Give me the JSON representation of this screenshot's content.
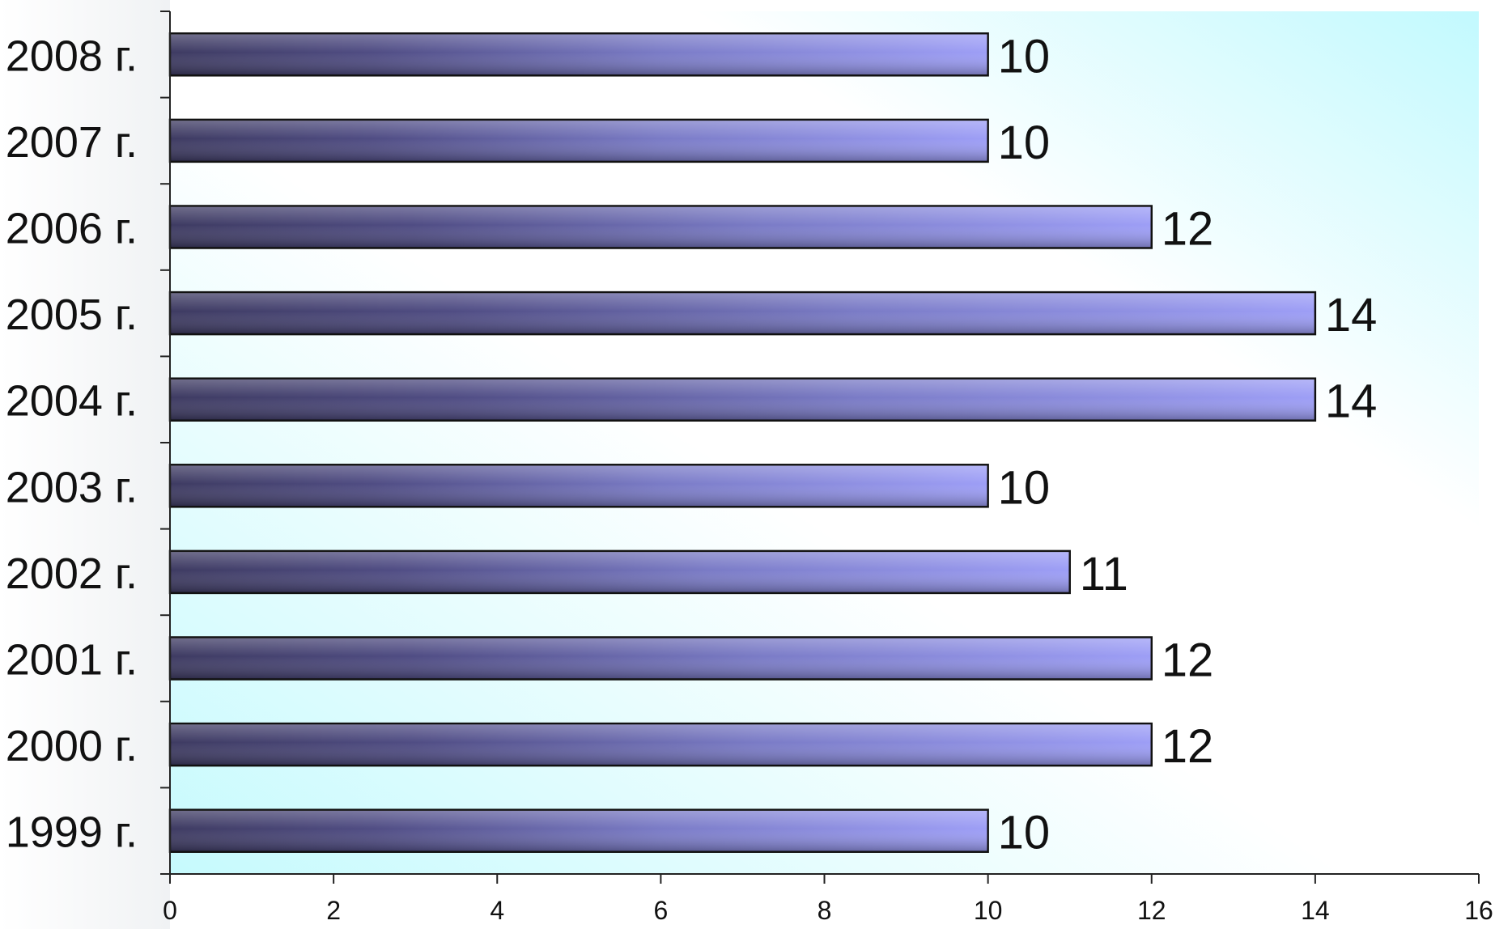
{
  "chart_data": {
    "type": "bar",
    "orientation": "horizontal",
    "categories": [
      "1999 г.",
      "2000 г.",
      "2001 г.",
      "2002 г.",
      "2003 г.",
      "2004 г.",
      "2005 г.",
      "2006 г.",
      "2007 г.",
      "2008 г."
    ],
    "values": [
      10,
      12,
      12,
      11,
      10,
      14,
      14,
      12,
      10,
      10
    ],
    "data_labels": [
      "10",
      "12",
      "12",
      "11",
      "10",
      "14",
      "14",
      "12",
      "10",
      "10"
    ],
    "xlim": [
      0,
      16
    ],
    "x_ticks": [
      0,
      2,
      4,
      6,
      8,
      10,
      12,
      14,
      16
    ],
    "x_tick_labels": [
      "0",
      "2",
      "4",
      "6",
      "8",
      "10",
      "12",
      "14",
      "16"
    ],
    "title": "",
    "xlabel": "",
    "ylabel": "",
    "grid": false,
    "legend": "none",
    "colors": {
      "bar_dark": "#3e3b62",
      "bar_mid": "#6e6fb6",
      "bar_light": "#9b9cf3",
      "bar_outline": "#111111",
      "background_light": "#ffffff",
      "background_cyan": "#c8fafe",
      "axis": "#222222",
      "text": "#111111"
    }
  }
}
